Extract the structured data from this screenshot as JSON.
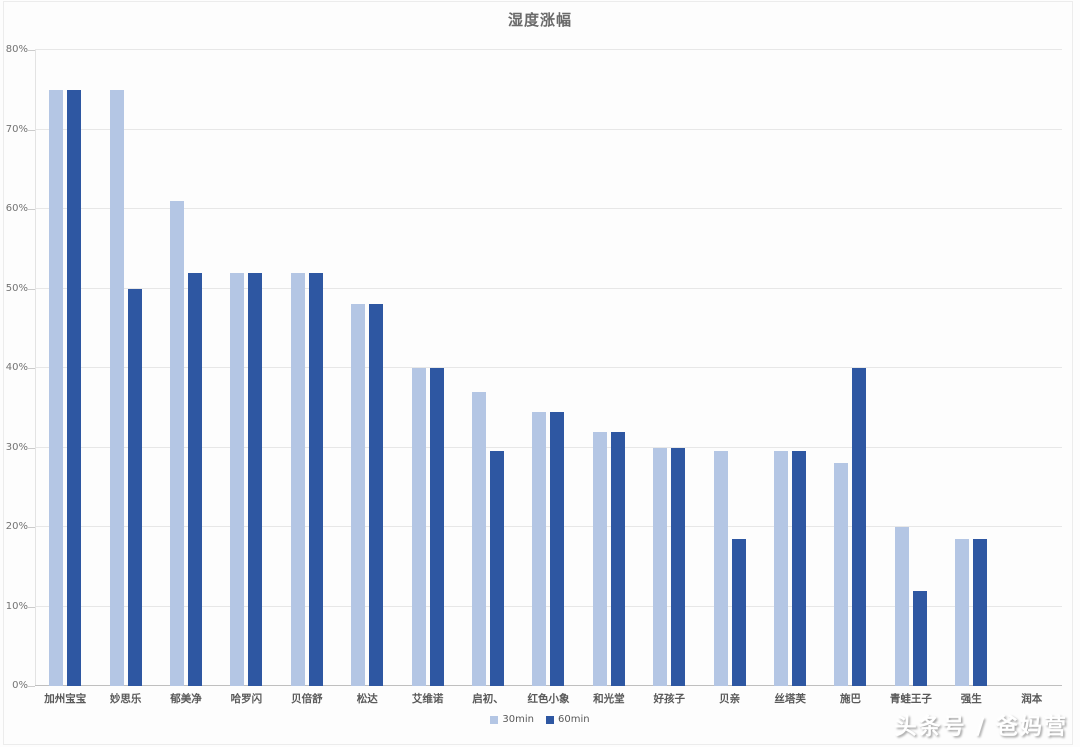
{
  "chart_data": {
    "type": "bar",
    "title": "湿度涨幅",
    "categories": [
      "加州宝宝",
      "妙思乐",
      "郁美净",
      "哈罗闪",
      "贝倍舒",
      "松达",
      "艾维诺",
      "启初、",
      "红色小象",
      "和光堂",
      "好孩子",
      "贝亲",
      "丝塔芙",
      "施巴",
      "青蛙王子",
      "强生",
      "润本"
    ],
    "series": [
      {
        "name": "30min",
        "color": "#b4c6e4",
        "values": [
          75,
          75,
          61,
          52,
          52,
          48,
          40,
          37,
          34.5,
          32,
          30,
          29.5,
          29.5,
          28,
          20,
          18.5,
          0
        ]
      },
      {
        "name": "60min",
        "color": "#2e57a2",
        "values": [
          75,
          50,
          52,
          52,
          52,
          48,
          40,
          29.5,
          34.5,
          32,
          30,
          18.5,
          29.5,
          40,
          12,
          18.5,
          0
        ]
      }
    ],
    "xlabel": "",
    "ylabel": "",
    "y_axis": {
      "min": 0,
      "max": 80,
      "step": 10,
      "tick_labels": [
        "0%",
        "10%",
        "20%",
        "30%",
        "40%",
        "50%",
        "60%",
        "70%",
        "80%"
      ]
    },
    "grid": true,
    "legend_position": "bottom"
  },
  "watermark": {
    "text": "头条号 / 爸妈营"
  }
}
